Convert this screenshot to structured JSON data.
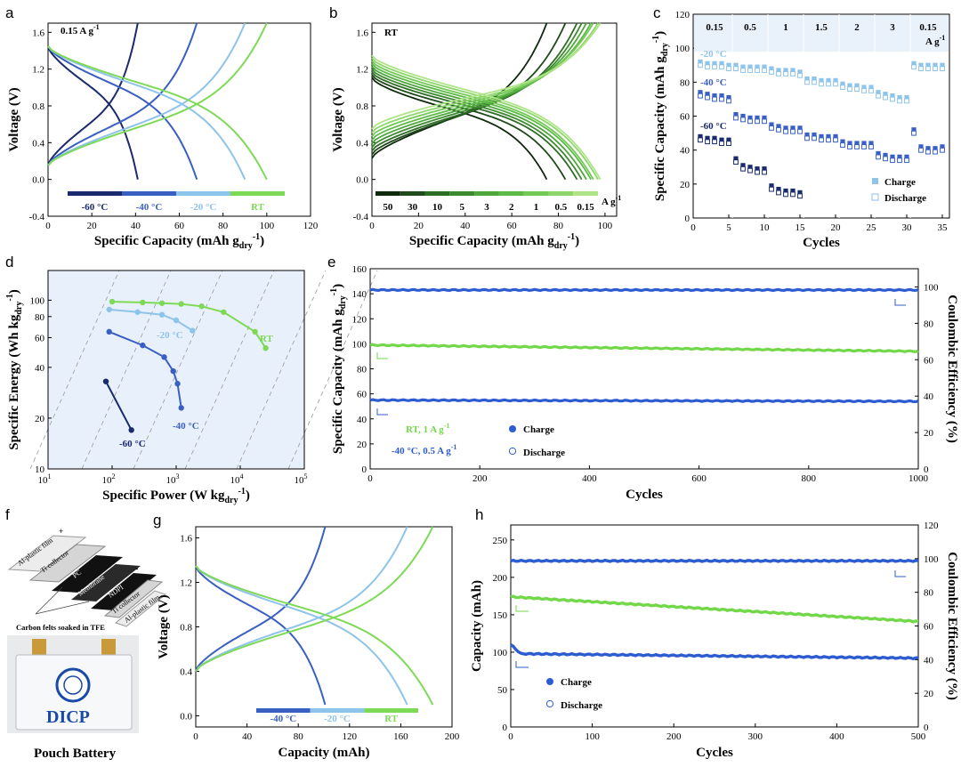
{
  "colors": {
    "c60": "#1a2a6c",
    "c40": "#3a5fc2",
    "c20": "#8ec3ea",
    "rt": "#7ed957",
    "panelD": "#e8f1fb",
    "blue": "#2d5bd0",
    "green": "#72d84a"
  },
  "panel_letters": [
    "a",
    "b",
    "c",
    "d",
    "e",
    "f",
    "g",
    "h"
  ],
  "f": {
    "labels": {
      "al_left": "Al-plastic film",
      "ti_left": "Ti collector",
      "pc": "PC",
      "membrane": "Membrane",
      "ndpi": "NDPI",
      "ti_right": "Ti collector",
      "al_right": "Al-plastic film",
      "plus": "+",
      "minus": "-"
    },
    "felts": "Carbon felts soaked in TFE",
    "logo": "DICP",
    "caption": "Pouch Battery"
  },
  "chart_data": [
    {
      "id": "a",
      "type": "line",
      "xlabel": "Specific Capacity (mAh g",
      "xlabel_sub": "dry",
      "xlabel_sup": "-1",
      "xlabel_close": ")",
      "ylabel": "Voltage (V)",
      "xlim": [
        0,
        120
      ],
      "ylim": [
        -0.4,
        1.7
      ],
      "xticks": [
        "0",
        "20",
        "40",
        "60",
        "80",
        "100",
        "120"
      ],
      "yticks": [
        "-0.4",
        "0.0",
        "0.4",
        "0.8",
        "1.2",
        "1.6"
      ],
      "annotation": "0.15 A g",
      "annotation_sup": "-1",
      "legend": [
        "-60 °C",
        "-40 °C",
        "-20 °C",
        "RT"
      ],
      "series": [
        {
          "name": "-60 °C",
          "key": "c60",
          "cap": 41
        },
        {
          "name": "-40 °C",
          "key": "c40",
          "cap": 68
        },
        {
          "name": "-20 °C",
          "key": "c20",
          "cap": 90
        },
        {
          "name": "RT",
          "key": "rt",
          "cap": 100
        }
      ]
    },
    {
      "id": "b",
      "type": "line",
      "xlabel": "Specific Capacity (mAh g",
      "xlabel_sub": "dry",
      "xlabel_sup": "-1",
      "xlabel_close": ")",
      "ylabel": "Voltage (V)",
      "xlim": [
        0,
        105
      ],
      "ylim": [
        -0.4,
        1.7
      ],
      "xticks": [
        "0",
        "20",
        "40",
        "60",
        "80",
        "100"
      ],
      "yticks": [
        "-0.4",
        "0.0",
        "0.4",
        "0.8",
        "1.2",
        "1.6"
      ],
      "annotation": "RT",
      "legend": [
        "50",
        "30",
        "10",
        "5",
        "3",
        "2",
        "1",
        "0.5",
        "0.15"
      ],
      "legend_unit": "A g",
      "legend_unit_sup": "-1",
      "series": [
        {
          "name": "50",
          "cap": 75,
          "color": "#0f2a0d"
        },
        {
          "name": "30",
          "cap": 83,
          "color": "#1f4a1a"
        },
        {
          "name": "10",
          "cap": 88,
          "color": "#2e6d25"
        },
        {
          "name": "5",
          "cap": 90,
          "color": "#3d8a30"
        },
        {
          "name": "3",
          "cap": 92,
          "color": "#4fa63b"
        },
        {
          "name": "2",
          "cap": 94,
          "color": "#5db948"
        },
        {
          "name": "1",
          "cap": 95,
          "color": "#73c856"
        },
        {
          "name": "0.5",
          "cap": 97,
          "color": "#8ed66c"
        },
        {
          "name": "0.15",
          "cap": 98,
          "color": "#aee488"
        }
      ]
    },
    {
      "id": "c",
      "type": "scatter",
      "xlabel": "Cycles",
      "ylabel": "Specific Capacity (mAh g",
      "ylabel_sub": "dry",
      "ylabel_sup": "-1",
      "ylabel_close": ")",
      "xlim": [
        0,
        36
      ],
      "ylim": [
        0,
        120
      ],
      "xticks": [
        "0",
        "5",
        "10",
        "15",
        "20",
        "25",
        "30",
        "35"
      ],
      "yticks": [
        "0",
        "20",
        "40",
        "60",
        "80",
        "100",
        "120"
      ],
      "rates": [
        "0.15",
        "0.5",
        "1",
        "1.5",
        "2",
        "3",
        "0.15"
      ],
      "rate_unit": "A g",
      "rate_unit_sup": "-1",
      "temp_labels": [
        "-20 °C",
        "-40 °C",
        "-60 °C"
      ],
      "legend": [
        "Charge",
        "Discharge"
      ],
      "series": [
        {
          "name": "-20 °C",
          "key": "c20",
          "y": [
            92,
            91,
            91,
            91,
            90,
            90,
            89,
            89,
            89,
            89,
            88,
            87,
            87,
            87,
            86,
            82,
            82,
            81,
            81,
            81,
            79,
            78,
            78,
            77,
            77,
            74,
            73,
            72,
            71,
            71,
            91,
            90,
            90,
            90,
            90
          ]
        },
        {
          "name": "-40 °C",
          "key": "c40",
          "y": [
            74,
            73,
            72,
            72,
            71,
            61,
            60,
            59,
            59,
            59,
            55,
            54,
            53,
            53,
            53,
            49,
            49,
            48,
            48,
            48,
            45,
            44,
            44,
            44,
            44,
            38,
            37,
            36,
            36,
            36,
            52,
            42,
            41,
            41,
            42
          ]
        },
        {
          "name": "-60 °C",
          "key": "c60",
          "y": [
            48,
            47,
            47,
            46,
            46,
            35,
            31,
            30,
            29,
            29,
            19,
            17,
            16,
            16,
            15
          ]
        }
      ]
    },
    {
      "id": "d",
      "type": "line",
      "xlabel": "Specific Power (W kg",
      "xlabel_sub": "dry",
      "xlabel_sup": "-1",
      "xlabel_close": ")",
      "ylabel": "Specific Energy (Wh kg",
      "ylabel_sub": "dry",
      "ylabel_sup": "-1",
      "ylabel_close": ")",
      "xscale": "log",
      "yscale": "log",
      "xlim": [
        10,
        100000
      ],
      "ylim": [
        10,
        150
      ],
      "xticks": [
        "10",
        "10",
        "10",
        "10",
        "10"
      ],
      "xtick_sups": [
        "1",
        "2",
        "3",
        "4",
        "5"
      ],
      "yticks": [
        "10",
        "20",
        "40",
        "60",
        "80",
        "100"
      ],
      "series": [
        {
          "name": "RT",
          "key": "rt",
          "x": [
            100,
            300,
            600,
            1200,
            2500,
            5500,
            17000,
            25000
          ],
          "y": [
            98,
            97,
            96,
            95,
            92,
            85,
            65,
            52
          ]
        },
        {
          "name": "-20 °C",
          "key": "c20",
          "x": [
            90,
            250,
            600,
            1000,
            1800
          ],
          "y": [
            88,
            85,
            82,
            76,
            66
          ]
        },
        {
          "name": "-40 °C",
          "key": "c40",
          "x": [
            90,
            300,
            650,
            900,
            1050,
            1200
          ],
          "y": [
            65,
            54,
            46,
            38,
            32,
            23
          ]
        },
        {
          "name": "-60 °C",
          "key": "c60",
          "x": [
            80,
            200
          ],
          "y": [
            33,
            17
          ]
        }
      ]
    },
    {
      "id": "e",
      "type": "scatter",
      "xlabel": "Cycles",
      "ylabel": "Specific Capacity (mAh g",
      "ylabel_sub": "dry",
      "ylabel_sup": "-1",
      "ylabel_close": ")",
      "y2label": "Coulombic Efficiency (%)",
      "xlim": [
        0,
        1000
      ],
      "ylim": [
        0,
        160
      ],
      "y2lim": [
        0,
        110
      ],
      "xticks": [
        "0",
        "200",
        "400",
        "600",
        "800",
        "1000"
      ],
      "yticks": [
        "0",
        "20",
        "40",
        "60",
        "80",
        "100",
        "120",
        "140",
        "160"
      ],
      "y2ticks": [
        "0",
        "20",
        "40",
        "60",
        "80",
        "100"
      ],
      "legend_text": [
        "RT, 1 A g",
        "-40 °C, 0.5 A g"
      ],
      "legend_sup": "-1",
      "legend": [
        "Charge",
        "Discharge"
      ],
      "series": [
        {
          "name": "CE",
          "key": "blue",
          "start": 143,
          "end": 143,
          "axis": "y"
        },
        {
          "name": "RT",
          "key": "green",
          "start": 99,
          "end": 94
        },
        {
          "name": "-40 °C",
          "key": "blue",
          "start": 55,
          "end": 54
        }
      ]
    },
    {
      "id": "g",
      "type": "line",
      "xlabel": "Capacity (mAh)",
      "ylabel": "Voltage (V)",
      "xlim": [
        0,
        200
      ],
      "ylim": [
        -0.1,
        1.7
      ],
      "xticks": [
        "0",
        "40",
        "80",
        "120",
        "160",
        "200"
      ],
      "yticks": [
        "0.0",
        "0.4",
        "0.8",
        "1.2",
        "1.6"
      ],
      "legend": [
        "-40 °C",
        "-20 °C",
        "RT"
      ],
      "series": [
        {
          "name": "-40 °C",
          "key": "c40",
          "cap": 101
        },
        {
          "name": "-20 °C",
          "key": "c20",
          "cap": 165
        },
        {
          "name": "RT",
          "key": "rt",
          "cap": 185
        }
      ]
    },
    {
      "id": "h",
      "type": "scatter",
      "xlabel": "Cycles",
      "ylabel": "Capacity (mAh)",
      "y2label": "Coulombic Efficiency (%)",
      "xlim": [
        0,
        500
      ],
      "ylim": [
        0,
        270
      ],
      "y2lim": [
        0,
        120
      ],
      "xticks": [
        "0",
        "100",
        "200",
        "300",
        "400",
        "500"
      ],
      "yticks": [
        "0",
        "50",
        "100",
        "150",
        "200",
        "250"
      ],
      "y2ticks": [
        "0",
        "20",
        "40",
        "60",
        "80",
        "100",
        "120"
      ],
      "legend": [
        "Charge",
        "Discharge"
      ],
      "series": [
        {
          "name": "CE",
          "key": "blue",
          "start": 222,
          "end": 222
        },
        {
          "name": "RT",
          "key": "green",
          "start": 174,
          "end": 141
        },
        {
          "name": "-40 °C",
          "key": "blue",
          "start": 98,
          "end": 92
        }
      ]
    }
  ]
}
